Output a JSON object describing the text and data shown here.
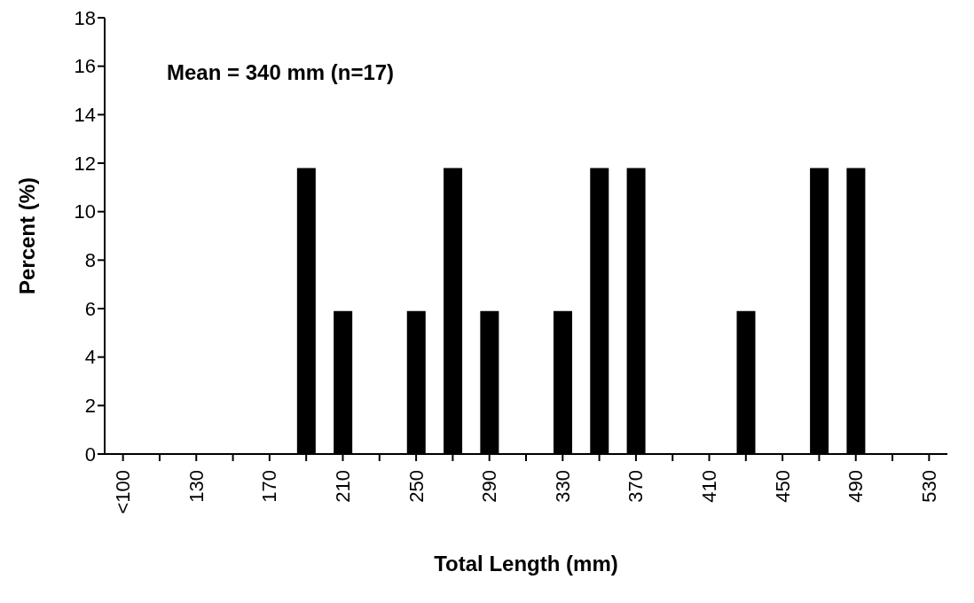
{
  "chart_data": {
    "type": "bar",
    "xlabel": "Total Length (mm)",
    "ylabel": "Percent (%)",
    "annotations": [
      "Mean = 340 mm (n=17)"
    ],
    "categories": [
      "<100",
      null,
      "130",
      null,
      "170",
      null,
      "210",
      null,
      "250",
      null,
      "290",
      null,
      "330",
      null,
      "370",
      null,
      "410",
      null,
      "450",
      null,
      "490",
      null,
      "530"
    ],
    "values": [
      0,
      0,
      0,
      0,
      0,
      11.8,
      5.9,
      0,
      5.9,
      11.8,
      5.9,
      0,
      5.9,
      11.8,
      11.8,
      0,
      0,
      5.9,
      0,
      11.8,
      11.8,
      0,
      0
    ],
    "color": "#000000",
    "ylim": [
      0,
      18
    ],
    "yticks": [
      0,
      2,
      4,
      6,
      8,
      10,
      12,
      14,
      16,
      18
    ],
    "grid": false,
    "legend": false
  }
}
